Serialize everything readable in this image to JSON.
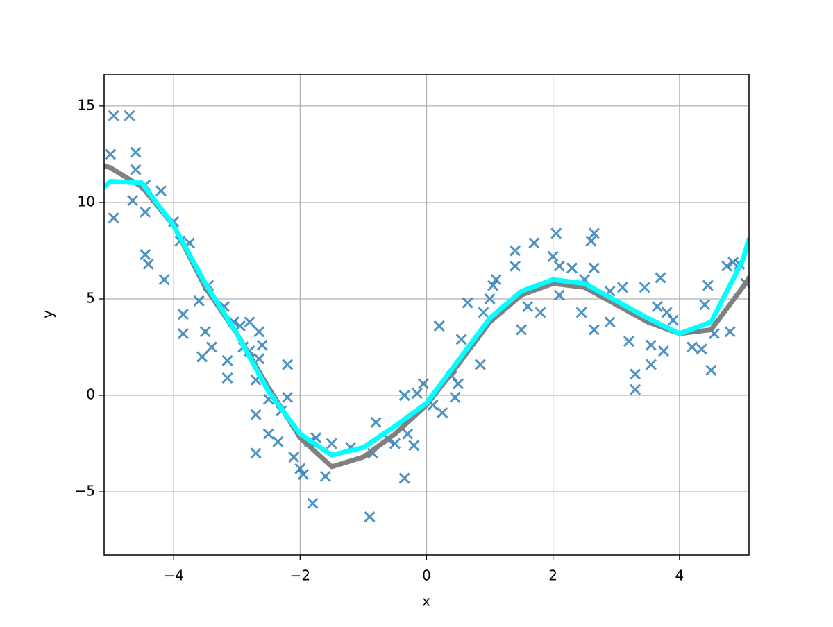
{
  "chart_data": {
    "type": "scatter",
    "xlabel": "x",
    "ylabel": "y",
    "xlim": [
      -5.1,
      5.1
    ],
    "ylim": [
      -8.27,
      16.65
    ],
    "xticks": [
      {
        "value": -4,
        "label": "−4"
      },
      {
        "value": -2,
        "label": "−2"
      },
      0,
      2,
      4
    ],
    "yticks": [
      {
        "value": -5,
        "label": "−5"
      },
      0,
      5,
      10,
      15
    ],
    "grid": true,
    "series": [
      {
        "type": "scatter",
        "color": "#1f77b4",
        "x": [
          -4.95,
          -4.7,
          -5.0,
          -4.6,
          -4.6,
          -4.95,
          -4.65,
          -4.45,
          -4.45,
          -4.2,
          -4.45,
          -4.4,
          -4.15,
          -4.0,
          -3.9,
          -3.75,
          -3.85,
          -3.85,
          -3.6,
          -3.45,
          -3.5,
          -3.55,
          -3.4,
          -3.2,
          -3.15,
          -3.15,
          -3.05,
          -2.95,
          -2.9,
          -2.8,
          -2.8,
          -2.7,
          -2.65,
          -2.65,
          -2.6,
          -2.7,
          -2.7,
          -2.5,
          -2.5,
          -2.35,
          -2.3,
          -2.2,
          -2.2,
          -2.1,
          -2.0,
          -1.95,
          -1.85,
          -1.8,
          -1.75,
          -1.6,
          -1.5,
          -1.2,
          -0.9,
          -0.85,
          -0.8,
          -0.6,
          -0.5,
          -0.35,
          -0.35,
          -0.3,
          -0.2,
          -0.15,
          -0.05,
          0.1,
          0.2,
          0.25,
          0.4,
          0.45,
          0.5,
          0.55,
          0.65,
          0.85,
          0.9,
          1.0,
          1.05,
          1.1,
          1.4,
          1.4,
          1.5,
          1.6,
          1.7,
          1.8,
          2.0,
          2.05,
          2.1,
          2.1,
          2.3,
          2.45,
          2.5,
          2.6,
          2.65,
          2.65,
          2.65,
          2.9,
          2.9,
          3.1,
          3.2,
          3.3,
          3.3,
          3.45,
          3.55,
          3.55,
          3.65,
          3.7,
          3.75,
          3.8,
          3.9,
          4.2,
          4.35,
          4.4,
          4.45,
          4.5,
          4.55,
          4.75,
          4.8,
          4.85,
          4.95,
          5.05
        ],
        "values": [
          14.5,
          14.5,
          12.5,
          12.6,
          11.7,
          9.2,
          10.1,
          10.9,
          9.5,
          10.6,
          7.3,
          6.8,
          6.0,
          9.0,
          8.0,
          7.9,
          4.2,
          3.2,
          4.9,
          5.7,
          3.3,
          2.0,
          2.5,
          4.6,
          1.8,
          0.9,
          3.8,
          3.6,
          2.5,
          3.8,
          2.3,
          0.8,
          3.3,
          1.9,
          2.6,
          -1.0,
          -3.0,
          -0.2,
          -2.0,
          -2.4,
          -0.8,
          1.6,
          -0.1,
          -3.2,
          -3.8,
          -4.1,
          -2.4,
          -5.6,
          -2.2,
          -4.2,
          -2.5,
          -2.7,
          -6.3,
          -3.0,
          -1.4,
          -2.3,
          -2.5,
          -4.3,
          0.0,
          -2.0,
          -2.6,
          0.1,
          0.6,
          -0.5,
          3.6,
          -0.9,
          1.0,
          -0.1,
          0.6,
          2.9,
          4.8,
          1.6,
          4.3,
          5.0,
          5.7,
          6.0,
          7.5,
          6.7,
          3.4,
          4.6,
          7.9,
          4.3,
          7.2,
          8.4,
          6.7,
          5.2,
          6.6,
          4.3,
          6.0,
          8.0,
          8.4,
          6.6,
          3.4,
          3.8,
          5.4,
          5.6,
          2.8,
          1.1,
          0.3,
          5.6,
          1.6,
          2.6,
          4.6,
          6.1,
          2.3,
          4.3,
          3.9,
          2.5,
          2.4,
          4.7,
          5.7,
          1.3,
          3.2,
          6.7,
          3.3,
          6.9,
          6.8,
          5.8
        ]
      },
      {
        "type": "line",
        "color": "#808080",
        "x": [
          -5.1,
          -5,
          -4.5,
          -4,
          -3.5,
          -3,
          -2.5,
          -2,
          -1.5,
          -1,
          -0.5,
          0,
          0.5,
          1,
          1.5,
          2,
          2.5,
          3,
          3.5,
          4,
          4.5,
          5,
          5.1
        ],
        "values": [
          11.9,
          11.8,
          10.8,
          8.8,
          5.6,
          3.2,
          0.4,
          -2.2,
          -3.7,
          -3.2,
          -2.0,
          -0.5,
          1.6,
          3.8,
          5.2,
          5.8,
          5.6,
          4.7,
          3.8,
          3.2,
          3.4,
          5.6,
          6.1
        ]
      },
      {
        "type": "line",
        "color": "#00ffff",
        "x": [
          -5.1,
          -5,
          -4.5,
          -4,
          -3.5,
          -3,
          -2.5,
          -2,
          -1.5,
          -1,
          -0.5,
          0,
          0.5,
          1,
          1.5,
          2,
          2.5,
          3,
          3.5,
          4,
          4.5,
          5,
          5.1
        ],
        "values": [
          10.8,
          11.1,
          11.0,
          8.8,
          5.8,
          3.2,
          0.2,
          -2.0,
          -3.1,
          -2.7,
          -1.6,
          -0.4,
          1.8,
          4.0,
          5.4,
          6.0,
          5.8,
          4.9,
          4.0,
          3.2,
          3.8,
          7.0,
          8.1
        ]
      }
    ]
  }
}
